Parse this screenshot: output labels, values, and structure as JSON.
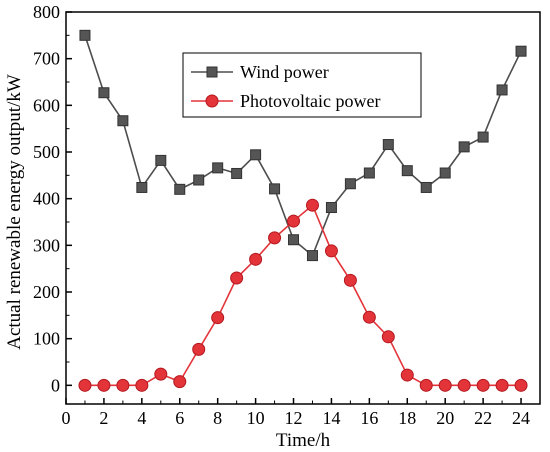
{
  "chart_data": {
    "type": "line",
    "xlabel": "Time/h",
    "ylabel": "Actual renewable energy output/kW",
    "xlim": [
      0,
      25
    ],
    "ylim": [
      -40,
      800
    ],
    "xticks": [
      0,
      2,
      4,
      6,
      8,
      10,
      12,
      14,
      16,
      18,
      20,
      22,
      24
    ],
    "yticks": [
      0,
      100,
      200,
      300,
      400,
      500,
      600,
      700,
      800
    ],
    "grid": false,
    "legend_position": "top-center",
    "x": [
      1,
      2,
      3,
      4,
      5,
      6,
      7,
      8,
      9,
      10,
      11,
      12,
      13,
      14,
      15,
      16,
      17,
      18,
      19,
      20,
      21,
      22,
      23,
      24
    ],
    "series": [
      {
        "name": "Wind power",
        "marker": "square",
        "color": "#4d4d4d",
        "values": [
          750,
          627,
          567,
          424,
          482,
          420,
          440,
          466,
          454,
          494,
          421,
          312,
          278,
          381,
          432,
          455,
          516,
          460,
          424,
          455,
          511,
          532,
          633,
          716
        ]
      },
      {
        "name": "Photovoltaic power",
        "marker": "circle",
        "color": "#e3343a",
        "values": [
          0,
          0,
          0,
          0,
          24,
          8,
          77,
          145,
          230,
          270,
          316,
          352,
          386,
          288,
          225,
          146,
          104,
          22,
          0,
          0,
          0,
          0,
          0,
          0
        ]
      }
    ]
  }
}
